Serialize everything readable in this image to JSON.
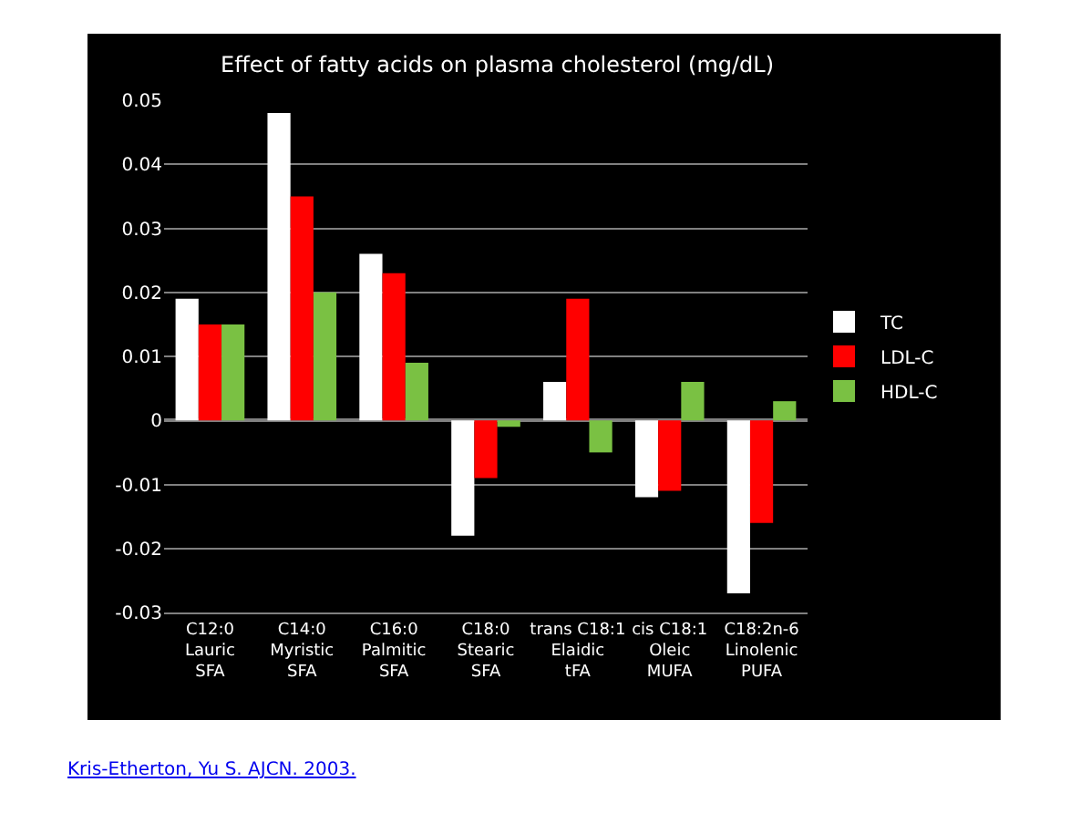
{
  "chart_data": {
    "type": "bar",
    "title": "Effect of fatty acids on plasma cholesterol (mg/dL)",
    "categories": [
      "C12:0\nLauric\nSFA",
      "C14:0\nMyristic\nSFA",
      "C16:0\nPalmitic\nSFA",
      "C18:0\nStearic\nSFA",
      "trans C18:1\nElaidic\ntFA",
      "cis C18:1\nOleic\nMUFA",
      "C18:2n-6\nLinolenic\nPUFA"
    ],
    "series": [
      {
        "name": "TC",
        "color": "#ffffff",
        "values": [
          0.019,
          0.048,
          0.026,
          -0.018,
          0.006,
          -0.012,
          -0.027
        ]
      },
      {
        "name": "LDL-C",
        "color": "#ff0000",
        "values": [
          0.015,
          0.035,
          0.023,
          -0.009,
          0.019,
          -0.011,
          -0.016
        ]
      },
      {
        "name": "HDL-C",
        "color": "#7ac143",
        "values": [
          0.015,
          0.02,
          0.009,
          -0.001,
          -0.005,
          0.006,
          0.003
        ]
      }
    ],
    "ylim": [
      -0.03,
      0.05
    ],
    "yticks": [
      {
        "value": -0.03,
        "label": "-0.03"
      },
      {
        "value": -0.02,
        "label": "-0.02"
      },
      {
        "value": -0.01,
        "label": "-0.01"
      },
      0,
      {
        "value": 0.01,
        "label": "0.01"
      },
      {
        "value": 0.02,
        "label": "0.02"
      },
      {
        "value": 0.03,
        "label": "0.03"
      },
      {
        "value": 0.04,
        "label": "0.04"
      },
      {
        "value": 0.05,
        "label": "0.05"
      }
    ],
    "grid": "y",
    "legend": "right",
    "annotations": [
      "Kris-Etherton, Yu S. AJCN. 2003."
    ]
  }
}
